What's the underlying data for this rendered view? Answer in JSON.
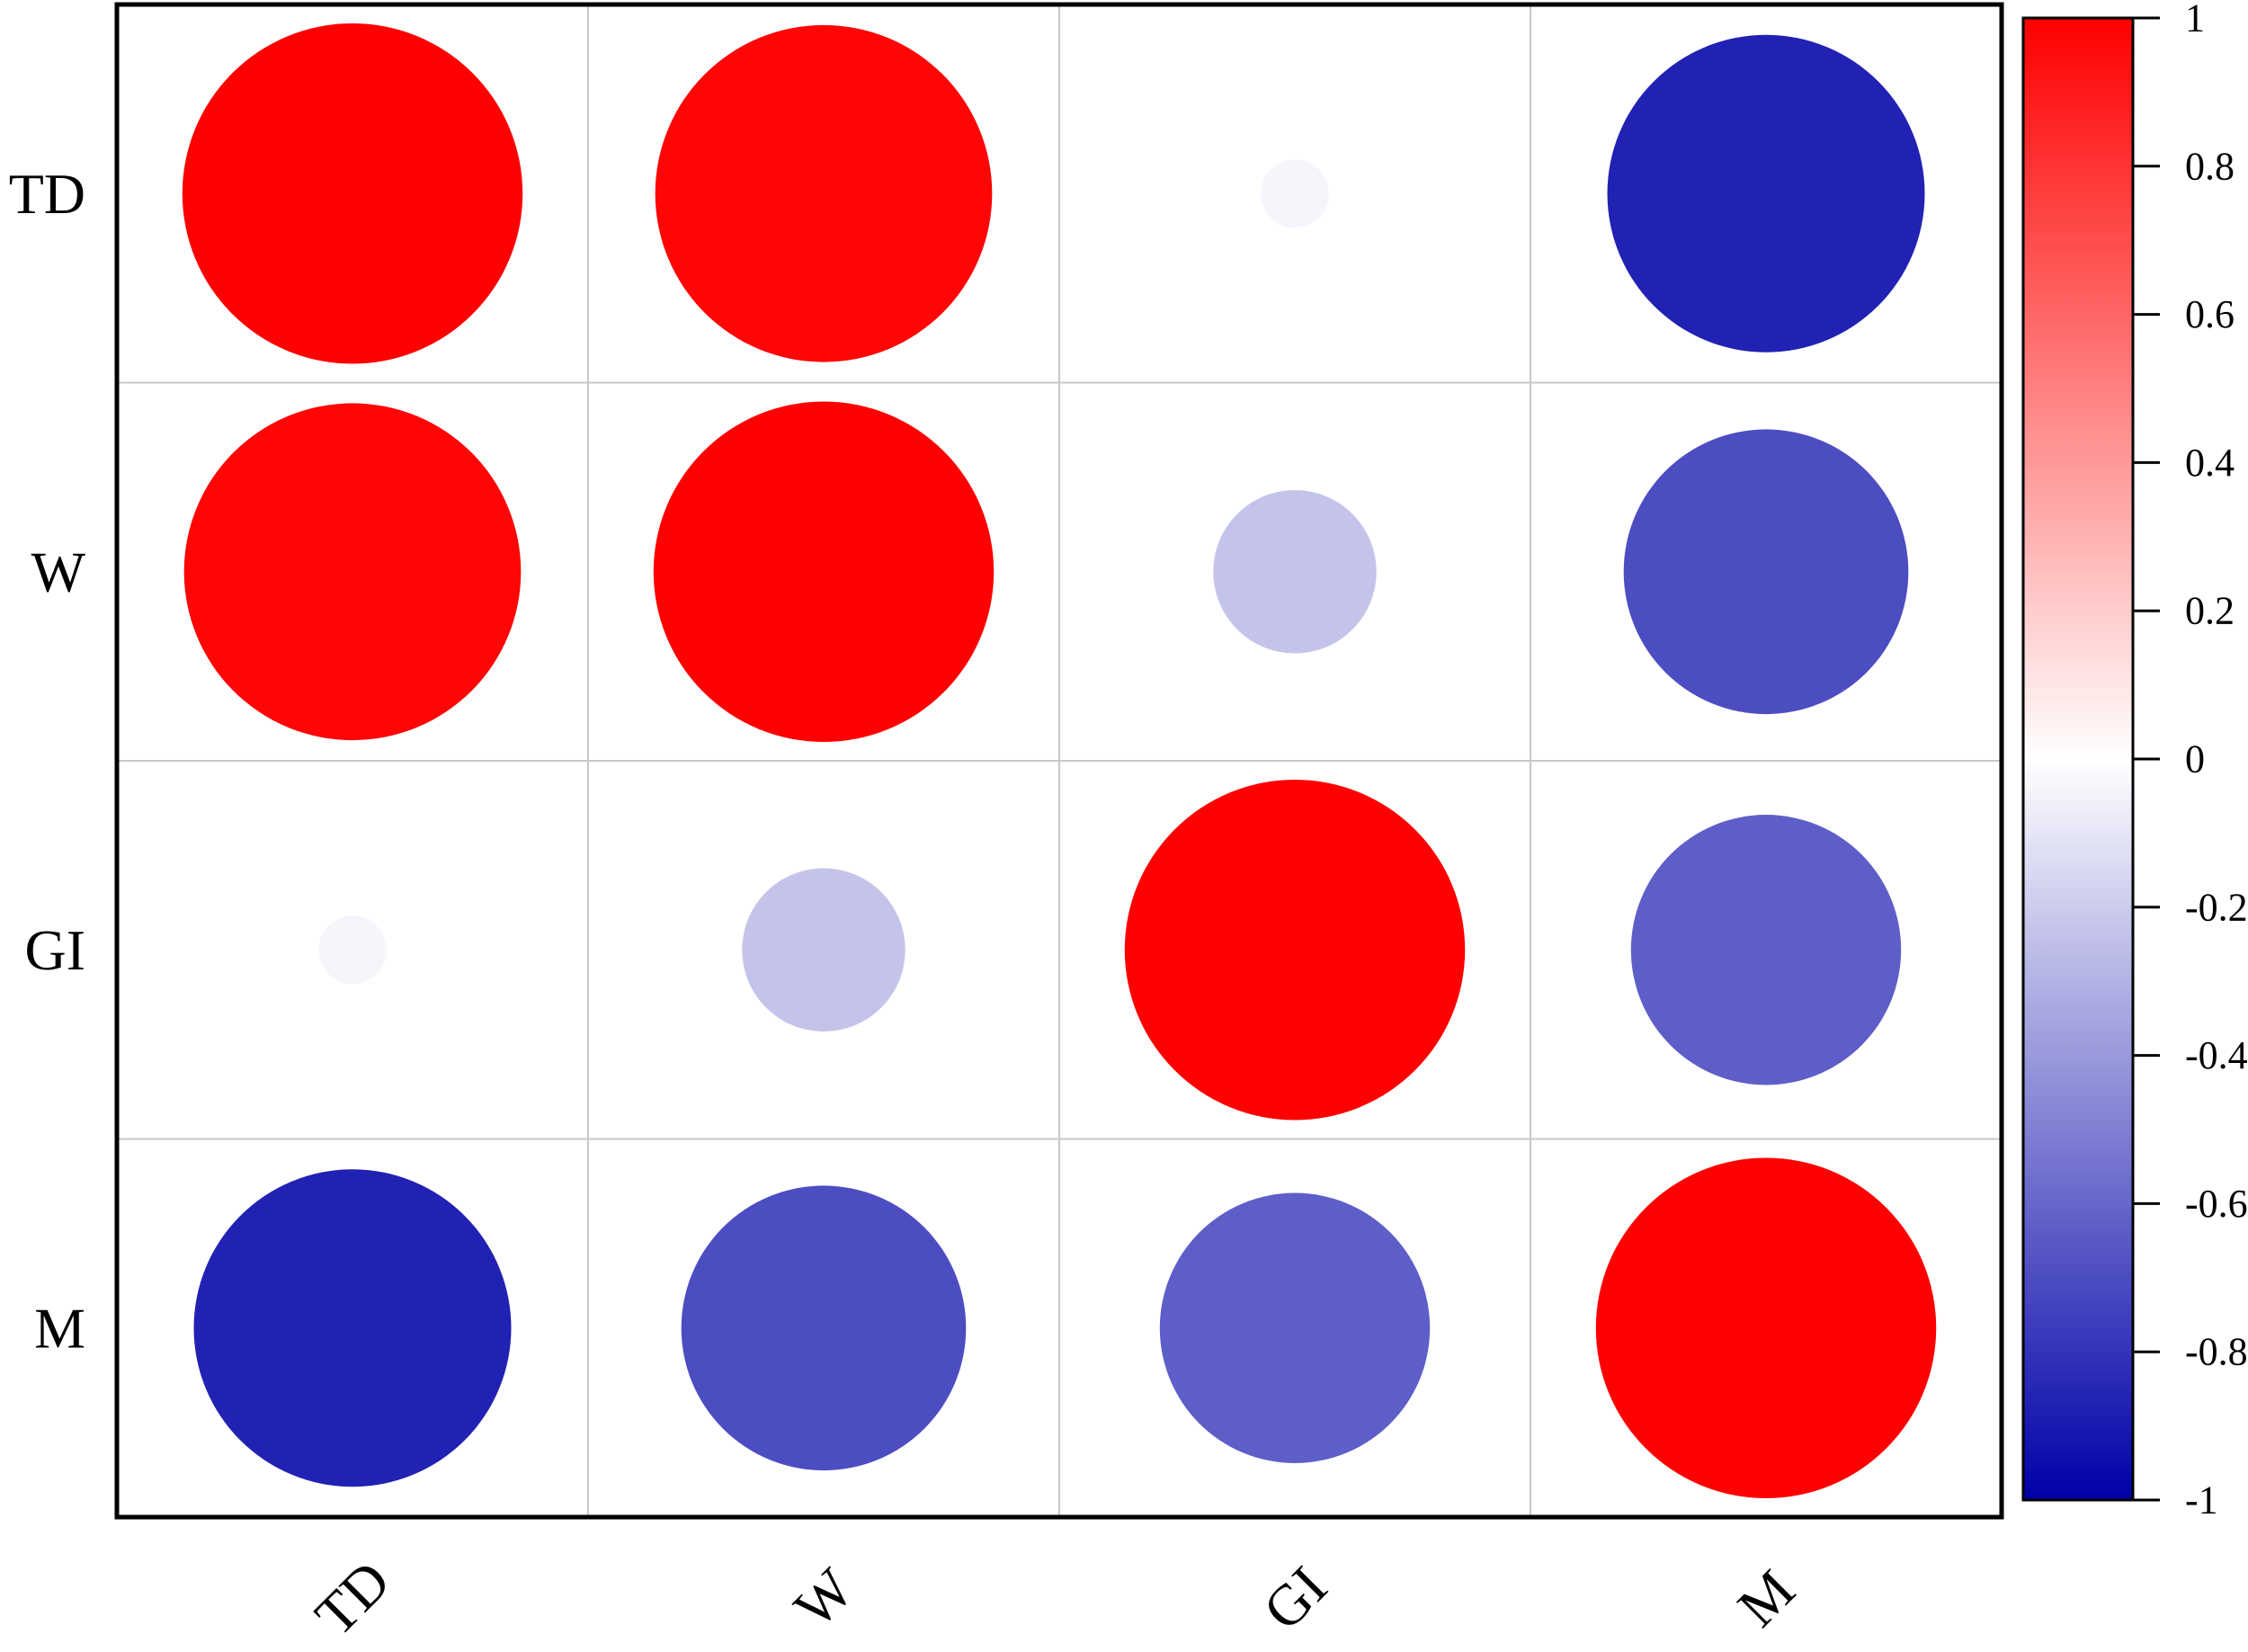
{
  "chart_data": {
    "type": "heatmap",
    "subtype": "correlation-bubble",
    "variables": [
      "TD",
      "W",
      "GI",
      "M"
    ],
    "matrix": [
      [
        1.0,
        0.98,
        -0.04,
        -0.87
      ],
      [
        0.98,
        1.0,
        -0.23,
        -0.7
      ],
      [
        -0.04,
        -0.23,
        1.0,
        -0.63
      ],
      [
        -0.87,
        -0.7,
        -0.63,
        1.0
      ]
    ],
    "grid": true,
    "colorbar": {
      "placement": "right",
      "range": [
        -1,
        1
      ],
      "ticks": [
        "1",
        "0.8",
        "0.6",
        "0.4",
        "0.2",
        "0",
        "-0.2",
        "-0.4",
        "-0.6",
        "-0.8",
        "-1"
      ],
      "colors": {
        "low": "#0000a8",
        "mid": "#ffffff",
        "high": "#ff0000"
      }
    }
  }
}
